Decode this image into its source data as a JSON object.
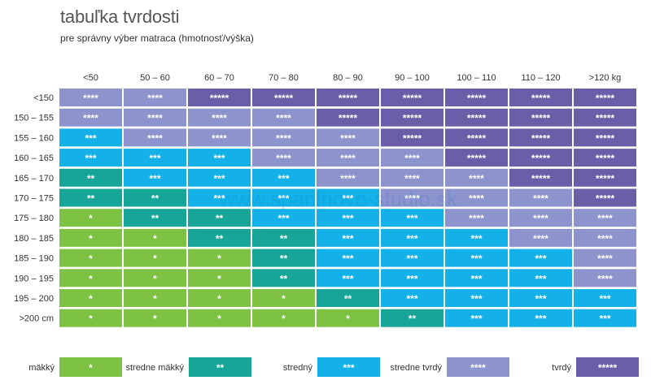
{
  "title": "tabuľka tvrdosti",
  "subtitle": "pre správny výber matraca (hmotnosť/výška)",
  "watermark": "www.spanlnovo-studio.sk",
  "colors": {
    "1": "#7dc242",
    "2": "#16a597",
    "3": "#13b1e8",
    "4": "#8c93cd",
    "5": "#6a5ea8"
  },
  "chart_data": {
    "type": "heatmap",
    "columns": [
      "<50",
      "50 – 60",
      "60 – 70",
      "70 – 80",
      "80 – 90",
      "90 – 100",
      "100 – 110",
      "110 – 120",
      ">120 kg"
    ],
    "rows": [
      "<150",
      "150 – 155",
      "155 – 160",
      "160 – 165",
      "165 – 170",
      "170 – 175",
      "175 – 180",
      "180 – 185",
      "185 – 190",
      "190 – 195",
      "195 – 200",
      ">200 cm"
    ],
    "values": [
      [
        4,
        4,
        5,
        5,
        5,
        5,
        5,
        5,
        5
      ],
      [
        4,
        4,
        4,
        4,
        5,
        5,
        5,
        5,
        5
      ],
      [
        3,
        4,
        4,
        4,
        4,
        5,
        5,
        5,
        5
      ],
      [
        3,
        3,
        3,
        4,
        4,
        4,
        5,
        5,
        5
      ],
      [
        2,
        3,
        3,
        3,
        4,
        4,
        4,
        5,
        5
      ],
      [
        2,
        2,
        3,
        3,
        3,
        4,
        4,
        4,
        5
      ],
      [
        1,
        2,
        2,
        3,
        3,
        3,
        4,
        4,
        4
      ],
      [
        1,
        1,
        2,
        2,
        3,
        3,
        3,
        4,
        4
      ],
      [
        1,
        1,
        1,
        2,
        3,
        3,
        3,
        3,
        4
      ],
      [
        1,
        1,
        1,
        2,
        3,
        3,
        3,
        3,
        4
      ],
      [
        1,
        1,
        1,
        1,
        2,
        3,
        3,
        3,
        3
      ],
      [
        1,
        1,
        1,
        1,
        1,
        2,
        3,
        3,
        3
      ]
    ],
    "legend": [
      {
        "label": "mäkký",
        "level": 1,
        "stars": "*"
      },
      {
        "label": "stredne mäkký",
        "level": 2,
        "stars": "**"
      },
      {
        "label": "stredný",
        "level": 3,
        "stars": "***"
      },
      {
        "label": "stredne tvrdý",
        "level": 4,
        "stars": "****"
      },
      {
        "label": "tvrdý",
        "level": 5,
        "stars": "*****"
      }
    ]
  }
}
